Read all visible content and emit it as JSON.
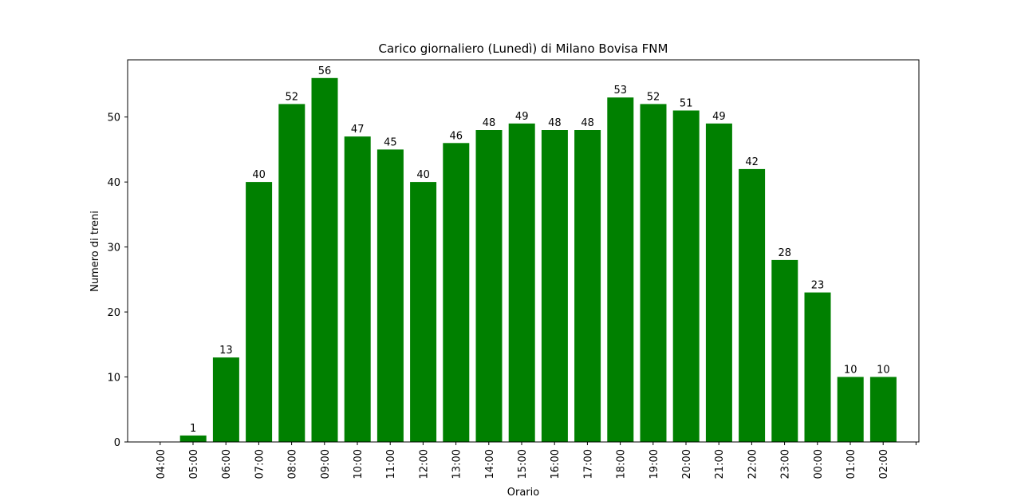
{
  "chart_data": {
    "type": "bar",
    "title": "Carico giornaliero (Lunedì) di Milano Bovisa FNM",
    "xlabel": "Orario",
    "ylabel": "Numero di treni",
    "x_tick_labels": [
      "04:00",
      "05:00",
      "06:00",
      "07:00",
      "08:00",
      "09:00",
      "10:00",
      "11:00",
      "12:00",
      "13:00",
      "14:00",
      "15:00",
      "16:00",
      "17:00",
      "18:00",
      "19:00",
      "20:00",
      "21:00",
      "22:00",
      "23:00",
      "00:00",
      "01:00",
      "02:00"
    ],
    "values": [
      0,
      1,
      13,
      40,
      52,
      56,
      47,
      45,
      40,
      46,
      48,
      49,
      48,
      48,
      53,
      52,
      51,
      49,
      42,
      28,
      23,
      10,
      10
    ],
    "bar_labels": [
      "",
      "1",
      "13",
      "40",
      "52",
      "56",
      "47",
      "45",
      "40",
      "46",
      "48",
      "49",
      "48",
      "48",
      "53",
      "52",
      "51",
      "49",
      "42",
      "28",
      "23",
      "10",
      "10"
    ],
    "y_ticks": [
      0,
      10,
      20,
      30,
      40,
      50
    ],
    "ylim": [
      0,
      58.8
    ],
    "grid": false,
    "bar_color": "#008000"
  }
}
